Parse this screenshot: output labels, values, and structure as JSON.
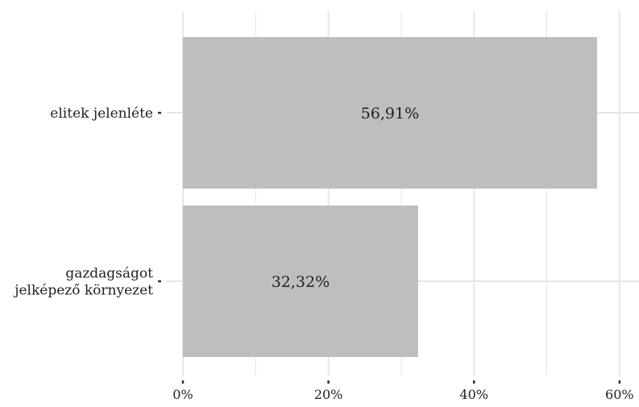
{
  "chart_data": {
    "type": "bar",
    "orientation": "horizontal",
    "categories": [
      "elitek jelenléte",
      "gazdagságot jelképező környezet"
    ],
    "category_lines": [
      [
        "elitek jelenléte"
      ],
      [
        "gazdagságot",
        "jelképező környezet"
      ]
    ],
    "values": [
      56.91,
      32.32
    ],
    "data_labels": [
      "56,91%",
      "32,32%"
    ],
    "x_ticks": [
      0,
      20,
      40,
      60
    ],
    "x_tick_labels": [
      "0%",
      "20%",
      "40%",
      "60%"
    ],
    "xlim": [
      0,
      60
    ],
    "title": "",
    "xlabel": "",
    "ylabel": "",
    "grid": true,
    "legend": "none",
    "colors": {
      "bar": "#bebebf",
      "grid": "#e6e6e6",
      "tick": "#333333",
      "text": "#222222",
      "background": "#ffffff"
    }
  }
}
